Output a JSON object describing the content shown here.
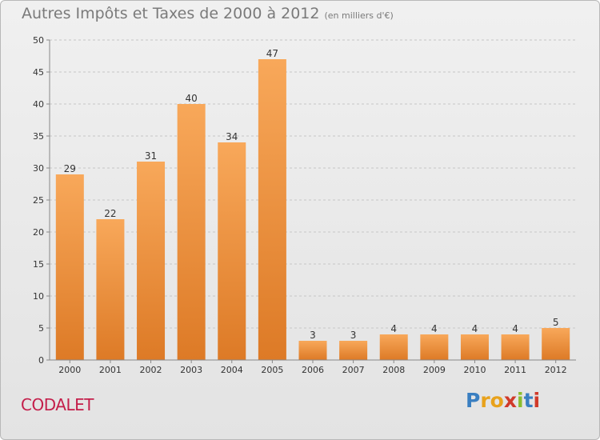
{
  "title": "Autres Impôts et Taxes de 2000 à 2012",
  "subtitle": "(en milliers d'€)",
  "commune": "CODALET",
  "logo": {
    "letters": [
      "P",
      "r",
      "o",
      "x",
      "i",
      "t",
      "i"
    ],
    "colors": [
      "#3a7fc1",
      "#e8a21c",
      "#e8a21c",
      "#d03a2a",
      "#8bbd2e",
      "#3a7fc1",
      "#d03a2a"
    ]
  },
  "colors": {
    "bar_light": "#f8a85a",
    "bar_dark": "#dd7a26",
    "grid": "#c6c6c6",
    "text": "#333333"
  },
  "chart_data": {
    "type": "bar",
    "categories": [
      "2000",
      "2001",
      "2002",
      "2003",
      "2004",
      "2005",
      "2006",
      "2007",
      "2008",
      "2009",
      "2010",
      "2011",
      "2012"
    ],
    "values": [
      29,
      22,
      31,
      40,
      34,
      47,
      3,
      3,
      4,
      4,
      4,
      4,
      5
    ],
    "ylim": [
      0,
      50
    ],
    "yticks": [
      0,
      5,
      10,
      15,
      20,
      25,
      30,
      35,
      40,
      45,
      50
    ],
    "grid": true
  }
}
